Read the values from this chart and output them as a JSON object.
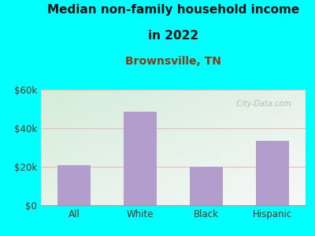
{
  "title_line1": "Median non-family household income",
  "title_line2": "in 2022",
  "subtitle": "Brownsville, TN",
  "categories": [
    "All",
    "White",
    "Black",
    "Hispanic"
  ],
  "values": [
    21000,
    48500,
    20000,
    33500
  ],
  "bar_color": "#b39dcc",
  "background_outer": "#00ffff",
  "background_inner_top_left": "#d4edda",
  "background_inner_bottom_right": "#f8f8f8",
  "grid_color": "#f0b8b8",
  "title_color": "#111111",
  "subtitle_color": "#8b3a10",
  "tick_color": "#5a3020",
  "ylim": [
    0,
    60000
  ],
  "yticks": [
    0,
    20000,
    40000,
    60000
  ],
  "ytick_labels": [
    "$0",
    "$20k",
    "$40k",
    "$60k"
  ],
  "watermark": "  City-Data.com",
  "title_fontsize": 11,
  "subtitle_fontsize": 10,
  "tick_fontsize": 8.5
}
